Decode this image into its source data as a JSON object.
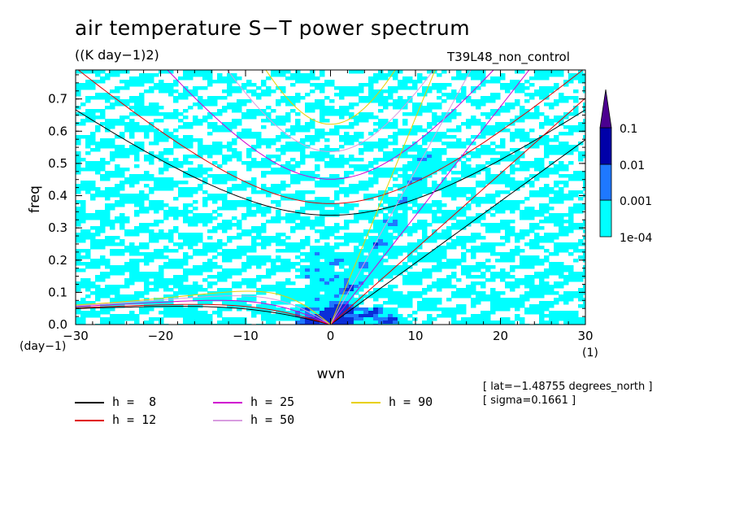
{
  "title": "air temperature S−T power spectrum",
  "units": "((K day−1)2)",
  "run_label": "T39L48_non_control",
  "meta": [
    "[ lat=−1.48755 degrees_north ]",
    "[ sigma=0.1661 ]"
  ],
  "chart_data": {
    "type": "heatmap",
    "xlabel": "wvn",
    "ylabel": "freq",
    "x_unit": "(1)",
    "y_unit": "(day−1)",
    "xlim": [
      -30,
      30
    ],
    "ylim": [
      0,
      0.79
    ],
    "x_ticks": [
      -30,
      -20,
      -10,
      0,
      10,
      20,
      30
    ],
    "x_tick_labels": [
      "−30",
      "−20",
      "−10",
      "0",
      "10",
      "20",
      "30"
    ],
    "y_ticks": [
      0,
      0.1,
      0.2,
      0.3,
      0.4,
      0.5,
      0.6,
      0.7
    ],
    "y_tick_labels": [
      "0.0",
      "0.1",
      "0.2",
      "0.3",
      "0.4",
      "0.5",
      "0.6",
      "0.7"
    ],
    "colorbar": {
      "levels": [
        "1e-04",
        "0.001",
        "0.01",
        "0.1"
      ],
      "colors": [
        "#00ffff",
        "#1e78ff",
        "#0a2ed8",
        "#0000a8",
        "#4b0090"
      ]
    },
    "dispersion_curves": [
      {
        "label": "h =  8",
        "h": 8,
        "color": "#000000"
      },
      {
        "label": "h = 12",
        "h": 12,
        "color": "#e00000"
      },
      {
        "label": "h = 25",
        "h": 25,
        "color": "#d000d0"
      },
      {
        "label": "h = 50",
        "h": 50,
        "color": "#d89ce0"
      },
      {
        "label": "h = 90",
        "h": 90,
        "color": "#e8d000"
      }
    ]
  }
}
